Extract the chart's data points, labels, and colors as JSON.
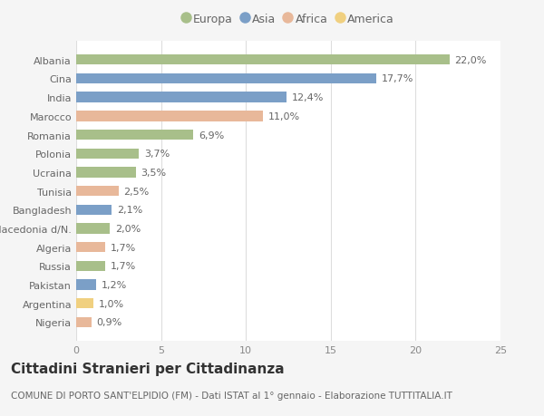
{
  "categories": [
    "Albania",
    "Cina",
    "India",
    "Marocco",
    "Romania",
    "Polonia",
    "Ucraina",
    "Tunisia",
    "Bangladesh",
    "Macedonia d/N.",
    "Algeria",
    "Russia",
    "Pakistan",
    "Argentina",
    "Nigeria"
  ],
  "values": [
    22.0,
    17.7,
    12.4,
    11.0,
    6.9,
    3.7,
    3.5,
    2.5,
    2.1,
    2.0,
    1.7,
    1.7,
    1.2,
    1.0,
    0.9
  ],
  "labels": [
    "22,0%",
    "17,7%",
    "12,4%",
    "11,0%",
    "6,9%",
    "3,7%",
    "3,5%",
    "2,5%",
    "2,1%",
    "2,0%",
    "1,7%",
    "1,7%",
    "1,2%",
    "1,0%",
    "0,9%"
  ],
  "colors": [
    "#a8bf8a",
    "#7b9fc7",
    "#7b9fc7",
    "#e8b89a",
    "#a8bf8a",
    "#a8bf8a",
    "#a8bf8a",
    "#e8b89a",
    "#7b9fc7",
    "#a8bf8a",
    "#e8b89a",
    "#a8bf8a",
    "#7b9fc7",
    "#f0d080",
    "#e8b89a"
  ],
  "legend_labels": [
    "Europa",
    "Asia",
    "Africa",
    "America"
  ],
  "legend_colors": [
    "#a8bf8a",
    "#7b9fc7",
    "#e8b89a",
    "#f0d080"
  ],
  "xlim": [
    0,
    25
  ],
  "xticks": [
    0,
    5,
    10,
    15,
    20,
    25
  ],
  "title": "Cittadini Stranieri per Cittadinanza",
  "subtitle": "COMUNE DI PORTO SANT'ELPIDIO (FM) - Dati ISTAT al 1° gennaio - Elaborazione TUTTITALIA.IT",
  "bg_color": "#f5f5f5",
  "plot_bg_color": "#ffffff",
  "grid_color": "#dddddd",
  "bar_height": 0.55,
  "label_fontsize": 8,
  "tick_fontsize": 8,
  "legend_fontsize": 9,
  "title_fontsize": 11,
  "subtitle_fontsize": 7.5
}
